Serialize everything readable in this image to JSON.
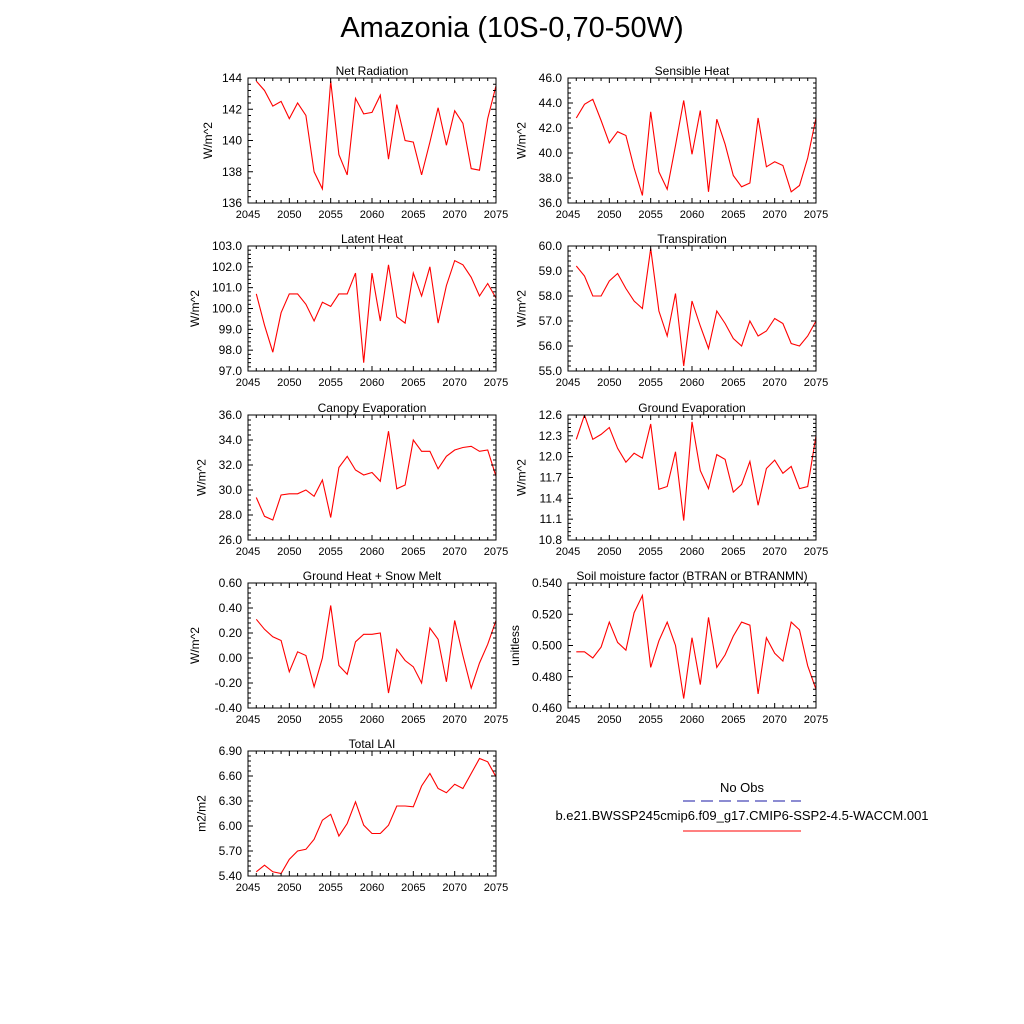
{
  "title": "Amazonia (10S-0,70-50W)",
  "colors": {
    "series": "#ff0000",
    "obs": "#1a1aa6",
    "axis": "#000000"
  },
  "legend": {
    "obs_label": "No Obs",
    "model_label": "b.e21.BWSSP245cmip6.f09_g17.CMIP6-SSP2-4.5-WACCM.001"
  },
  "chart_data": [
    {
      "id": "net-radiation",
      "type": "line",
      "title": "Net Radiation",
      "ylabel": "W/m^2",
      "xlim": [
        2045,
        2075
      ],
      "xticks": [
        2045,
        2050,
        2055,
        2060,
        2065,
        2070,
        2075
      ],
      "ylim": [
        136,
        144
      ],
      "yticks": [
        "136",
        "138",
        "140",
        "142",
        "144"
      ],
      "x": [
        2046,
        2047,
        2048,
        2049,
        2050,
        2051,
        2052,
        2053,
        2054,
        2055,
        2056,
        2057,
        2058,
        2059,
        2060,
        2061,
        2062,
        2063,
        2064,
        2065,
        2066,
        2067,
        2068,
        2069,
        2070,
        2071,
        2072,
        2073,
        2074,
        2075
      ],
      "values": [
        143.8,
        143.2,
        142.2,
        142.5,
        141.4,
        142.4,
        141.6,
        138.0,
        136.9,
        143.8,
        139.1,
        137.8,
        142.7,
        141.7,
        141.8,
        142.9,
        138.8,
        142.3,
        140.0,
        139.9,
        137.8,
        139.9,
        142.1,
        139.7,
        141.9,
        141.1,
        138.2,
        138.1,
        141.4,
        143.5
      ]
    },
    {
      "id": "sensible-heat",
      "type": "line",
      "title": "Sensible Heat",
      "ylabel": "W/m^2",
      "xlim": [
        2045,
        2075
      ],
      "xticks": [
        2045,
        2050,
        2055,
        2060,
        2065,
        2070,
        2075
      ],
      "ylim": [
        36,
        46
      ],
      "yticks": [
        "36.0",
        "38.0",
        "40.0",
        "42.0",
        "44.0",
        "46.0"
      ],
      "x": [
        2046,
        2047,
        2048,
        2049,
        2050,
        2051,
        2052,
        2053,
        2054,
        2055,
        2056,
        2057,
        2058,
        2059,
        2060,
        2061,
        2062,
        2063,
        2064,
        2065,
        2066,
        2067,
        2068,
        2069,
        2070,
        2071,
        2072,
        2073,
        2074,
        2075
      ],
      "values": [
        42.8,
        43.9,
        44.3,
        42.6,
        40.8,
        41.7,
        41.4,
        38.8,
        36.6,
        43.3,
        38.5,
        37.1,
        40.6,
        44.2,
        39.9,
        43.4,
        36.9,
        42.7,
        40.7,
        38.2,
        37.3,
        37.6,
        42.8,
        38.9,
        39.3,
        39.0,
        36.9,
        37.4,
        39.6,
        42.8
      ]
    },
    {
      "id": "latent-heat",
      "type": "line",
      "title": "Latent Heat",
      "ylabel": "W/m^2",
      "xlim": [
        2045,
        2075
      ],
      "xticks": [
        2045,
        2050,
        2055,
        2060,
        2065,
        2070,
        2075
      ],
      "ylim": [
        97,
        103
      ],
      "yticks": [
        "97.0",
        "98.0",
        "99.0",
        "100.0",
        "101.0",
        "102.0",
        "103.0"
      ],
      "x": [
        2046,
        2047,
        2048,
        2049,
        2050,
        2051,
        2052,
        2053,
        2054,
        2055,
        2056,
        2057,
        2058,
        2059,
        2060,
        2061,
        2062,
        2063,
        2064,
        2065,
        2066,
        2067,
        2068,
        2069,
        2070,
        2071,
        2072,
        2073,
        2074,
        2075
      ],
      "values": [
        100.7,
        99.2,
        97.9,
        99.8,
        100.7,
        100.7,
        100.2,
        99.4,
        100.3,
        100.1,
        100.7,
        100.7,
        101.7,
        97.4,
        101.7,
        99.4,
        102.1,
        99.6,
        99.3,
        101.7,
        100.6,
        102.0,
        99.3,
        101.1,
        102.3,
        102.1,
        101.5,
        100.6,
        101.2,
        100.5
      ]
    },
    {
      "id": "transpiration",
      "type": "line",
      "title": "Transpiration",
      "ylabel": "W/m^2",
      "xlim": [
        2045,
        2075
      ],
      "xticks": [
        2045,
        2050,
        2055,
        2060,
        2065,
        2070,
        2075
      ],
      "ylim": [
        55,
        60
      ],
      "yticks": [
        "55.0",
        "56.0",
        "57.0",
        "58.0",
        "59.0",
        "60.0"
      ],
      "x": [
        2046,
        2047,
        2048,
        2049,
        2050,
        2051,
        2052,
        2053,
        2054,
        2055,
        2056,
        2057,
        2058,
        2059,
        2060,
        2061,
        2062,
        2063,
        2064,
        2065,
        2066,
        2067,
        2068,
        2069,
        2070,
        2071,
        2072,
        2073,
        2074,
        2075
      ],
      "values": [
        59.2,
        58.8,
        58.0,
        58.0,
        58.6,
        58.9,
        58.3,
        57.8,
        57.5,
        59.9,
        57.4,
        56.4,
        58.1,
        55.2,
        57.8,
        56.8,
        55.9,
        57.4,
        56.9,
        56.3,
        56.0,
        57.0,
        56.4,
        56.6,
        57.1,
        56.9,
        56.1,
        56.0,
        56.4,
        57.0
      ]
    },
    {
      "id": "canopy-evaporation",
      "type": "line",
      "title": "Canopy Evaporation",
      "ylabel": "W/m^2",
      "xlim": [
        2045,
        2075
      ],
      "xticks": [
        2045,
        2050,
        2055,
        2060,
        2065,
        2070,
        2075
      ],
      "ylim": [
        26,
        36
      ],
      "yticks": [
        "26.0",
        "28.0",
        "30.0",
        "32.0",
        "34.0",
        "36.0"
      ],
      "x": [
        2046,
        2047,
        2048,
        2049,
        2050,
        2051,
        2052,
        2053,
        2054,
        2055,
        2056,
        2057,
        2058,
        2059,
        2060,
        2061,
        2062,
        2063,
        2064,
        2065,
        2066,
        2067,
        2068,
        2069,
        2070,
        2071,
        2072,
        2073,
        2074,
        2075
      ],
      "values": [
        29.4,
        27.9,
        27.6,
        29.6,
        29.7,
        29.7,
        30.0,
        29.5,
        30.8,
        27.8,
        31.8,
        32.7,
        31.6,
        31.2,
        31.4,
        30.7,
        34.7,
        30.1,
        30.4,
        34.0,
        33.1,
        33.1,
        31.7,
        32.7,
        33.2,
        33.4,
        33.5,
        33.1,
        33.2,
        31.1
      ]
    },
    {
      "id": "ground-evaporation",
      "type": "line",
      "title": "Ground Evaporation",
      "ylabel": "W/m^2",
      "xlim": [
        2045,
        2075
      ],
      "xticks": [
        2045,
        2050,
        2055,
        2060,
        2065,
        2070,
        2075
      ],
      "ylim": [
        10.8,
        12.6
      ],
      "yticks": [
        "10.8",
        "11.1",
        "11.4",
        "11.7",
        "12.0",
        "12.3",
        "12.6"
      ],
      "x": [
        2046,
        2047,
        2048,
        2049,
        2050,
        2051,
        2052,
        2053,
        2054,
        2055,
        2056,
        2057,
        2058,
        2059,
        2060,
        2061,
        2062,
        2063,
        2064,
        2065,
        2066,
        2067,
        2068,
        2069,
        2070,
        2071,
        2072,
        2073,
        2074,
        2075
      ],
      "values": [
        12.25,
        12.6,
        12.25,
        12.32,
        12.42,
        12.12,
        11.92,
        12.05,
        11.98,
        12.47,
        11.53,
        11.57,
        12.07,
        11.08,
        12.5,
        11.8,
        11.54,
        12.03,
        11.96,
        11.49,
        11.6,
        11.93,
        11.3,
        11.83,
        11.95,
        11.76,
        11.86,
        11.54,
        11.57,
        12.3
      ]
    },
    {
      "id": "ground-heat-snow-melt",
      "type": "line",
      "title": "Ground Heat + Snow Melt",
      "ylabel": "W/m^2",
      "xlim": [
        2045,
        2075
      ],
      "xticks": [
        2045,
        2050,
        2055,
        2060,
        2065,
        2070,
        2075
      ],
      "ylim": [
        -0.4,
        0.6
      ],
      "yticks": [
        "-0.40",
        "-0.20",
        "0.00",
        "0.20",
        "0.40",
        "0.60"
      ],
      "x": [
        2046,
        2047,
        2048,
        2049,
        2050,
        2051,
        2052,
        2053,
        2054,
        2055,
        2056,
        2057,
        2058,
        2059,
        2060,
        2061,
        2062,
        2063,
        2064,
        2065,
        2066,
        2067,
        2068,
        2069,
        2070,
        2071,
        2072,
        2073,
        2074,
        2075
      ],
      "values": [
        0.31,
        0.23,
        0.17,
        0.14,
        -0.11,
        0.05,
        0.02,
        -0.23,
        0.0,
        0.42,
        -0.06,
        -0.13,
        0.13,
        0.19,
        0.19,
        0.2,
        -0.28,
        0.07,
        -0.02,
        -0.07,
        -0.2,
        0.24,
        0.15,
        -0.19,
        0.3,
        0.02,
        -0.24,
        -0.04,
        0.11,
        0.3
      ]
    },
    {
      "id": "soil-moisture-factor",
      "type": "line",
      "title": "Soil moisture factor (BTRAN or BTRANMN)",
      "ylabel": "unitless",
      "xlim": [
        2045,
        2075
      ],
      "xticks": [
        2045,
        2050,
        2055,
        2060,
        2065,
        2070,
        2075
      ],
      "ylim": [
        0.46,
        0.54
      ],
      "yticks": [
        "0.460",
        "0.480",
        "0.500",
        "0.520",
        "0.540"
      ],
      "x": [
        2046,
        2047,
        2048,
        2049,
        2050,
        2051,
        2052,
        2053,
        2054,
        2055,
        2056,
        2057,
        2058,
        2059,
        2060,
        2061,
        2062,
        2063,
        2064,
        2065,
        2066,
        2067,
        2068,
        2069,
        2070,
        2071,
        2072,
        2073,
        2074,
        2075
      ],
      "values": [
        0.496,
        0.496,
        0.492,
        0.499,
        0.515,
        0.502,
        0.497,
        0.521,
        0.532,
        0.486,
        0.503,
        0.515,
        0.5,
        0.466,
        0.505,
        0.475,
        0.518,
        0.486,
        0.494,
        0.506,
        0.515,
        0.513,
        0.469,
        0.505,
        0.495,
        0.49,
        0.515,
        0.51,
        0.487,
        0.472
      ]
    },
    {
      "id": "total-lai",
      "type": "line",
      "title": "Total LAI",
      "ylabel": "m2/m2",
      "xlim": [
        2045,
        2075
      ],
      "xticks": [
        2045,
        2050,
        2055,
        2060,
        2065,
        2070,
        2075
      ],
      "ylim": [
        5.4,
        6.9
      ],
      "yticks": [
        "5.40",
        "5.70",
        "6.00",
        "6.30",
        "6.60",
        "6.90"
      ],
      "x": [
        2046,
        2047,
        2048,
        2049,
        2050,
        2051,
        2052,
        2053,
        2054,
        2055,
        2056,
        2057,
        2058,
        2059,
        2060,
        2061,
        2062,
        2063,
        2064,
        2065,
        2066,
        2067,
        2068,
        2069,
        2070,
        2071,
        2072,
        2073,
        2074,
        2075
      ],
      "values": [
        5.45,
        5.53,
        5.45,
        5.43,
        5.6,
        5.7,
        5.72,
        5.84,
        6.07,
        6.14,
        5.88,
        6.03,
        6.29,
        6.01,
        5.91,
        5.91,
        6.01,
        6.24,
        6.24,
        6.23,
        6.48,
        6.63,
        6.45,
        6.4,
        6.5,
        6.45,
        6.63,
        6.81,
        6.77,
        6.59
      ]
    }
  ]
}
